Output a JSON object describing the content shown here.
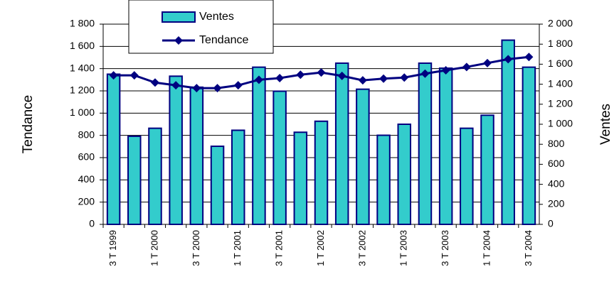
{
  "chart_data": {
    "type": "bar_line",
    "categories": [
      "3 T 1999",
      null,
      "1 T 2000",
      null,
      "3 T 2000",
      null,
      "1 T 2001",
      null,
      "3 T 2001",
      null,
      "1 T 2002",
      null,
      "3 T 2002",
      null,
      "1 T 2003",
      null,
      "3 T 2003",
      null,
      "1 T 2004",
      null,
      "3 T 2004"
    ],
    "series": [
      {
        "name": "Ventes",
        "type": "bar",
        "axis": "y2",
        "color": "#33cccc",
        "values": [
          1500,
          880,
          960,
          1480,
          1370,
          780,
          940,
          1570,
          1330,
          920,
          1030,
          1610,
          1350,
          890,
          1000,
          1610,
          1560,
          960,
          1090,
          1840,
          1570
        ]
      },
      {
        "name": "Tendance",
        "type": "line",
        "color": "#000080",
        "values": [
          1340,
          1340,
          1275,
          1250,
          1225,
          1225,
          1250,
          1300,
          1315,
          1345,
          1365,
          1335,
          1295,
          1310,
          1320,
          1355,
          1385,
          1415,
          1450,
          1485,
          1505
        ]
      }
    ],
    "ylabel": "Tendance",
    "y2label": "Ventes",
    "ylim": [
      0,
      1800
    ],
    "yticks": [
      0,
      200,
      400,
      600,
      800,
      {
        "value": 1000,
        "label": "1 000"
      },
      {
        "value": 1200,
        "label": "1 200"
      },
      {
        "value": 1400,
        "label": "1 400"
      },
      {
        "value": 1600,
        "label": "1 600"
      },
      {
        "value": 1800,
        "label": "1 800"
      }
    ],
    "y2lim": [
      0,
      2000
    ],
    "y2ticks": [
      0,
      200,
      400,
      600,
      800,
      {
        "value": 1000,
        "label": "1 000"
      },
      {
        "value": 1200,
        "label": "1 200"
      },
      {
        "value": 1400,
        "label": "1 400"
      },
      {
        "value": 1600,
        "label": "1 600"
      },
      {
        "value": 1800,
        "label": "1 800"
      },
      {
        "value": 2000,
        "label": "2 000"
      }
    ],
    "grid": true
  }
}
